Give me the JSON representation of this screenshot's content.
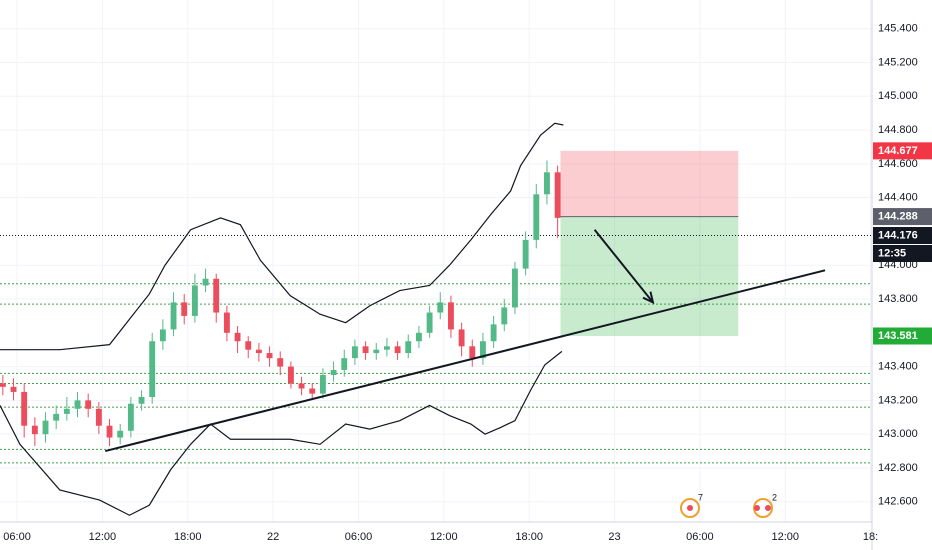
{
  "chart_data": {
    "type": "candlestick",
    "xlim": [
      4.8,
      66.1
    ],
    "ylim": [
      142.48,
      145.57
    ],
    "xticks": [
      {
        "value": 6,
        "label": "06:00"
      },
      {
        "value": 12,
        "label": "12:00"
      },
      {
        "value": 18,
        "label": "18:00"
      },
      {
        "value": 24,
        "label": "22"
      },
      {
        "value": 30,
        "label": "06:00"
      },
      {
        "value": 36,
        "label": "12:00"
      },
      {
        "value": 42,
        "label": "18:00"
      },
      {
        "value": 48,
        "label": "23"
      },
      {
        "value": 54,
        "label": "06:00"
      },
      {
        "value": 60,
        "label": "12:00"
      },
      {
        "value": 66,
        "label": "18:"
      }
    ],
    "yticks": [
      {
        "value": 145.4,
        "label": "145.400"
      },
      {
        "value": 145.2,
        "label": "145.200"
      },
      {
        "value": 145.0,
        "label": "145.000"
      },
      {
        "value": 144.8,
        "label": "144.800"
      },
      {
        "value": 144.6,
        "label": "144.600"
      },
      {
        "value": 144.4,
        "label": "144.400"
      },
      {
        "value": 144.0,
        "label": "144.000"
      },
      {
        "value": 143.8,
        "label": "143.800"
      },
      {
        "value": 143.4,
        "label": "143.400"
      },
      {
        "value": 143.2,
        "label": "143.200"
      },
      {
        "value": 143.0,
        "label": "143.000"
      },
      {
        "value": 142.8,
        "label": "142.800"
      },
      {
        "value": 142.6,
        "label": "142.600"
      }
    ],
    "grid": true,
    "up_color": "#53b987",
    "down_color": "#eb4d5c",
    "x": [
      5.0,
      5.75,
      6.5,
      7.25,
      8.0,
      8.75,
      9.5,
      10.25,
      11.0,
      11.75,
      12.5,
      13.25,
      14.0,
      14.75,
      15.5,
      16.25,
      17.0,
      17.75,
      18.5,
      19.25,
      20.0,
      20.75,
      21.5,
      22.25,
      23.0,
      23.75,
      24.5,
      25.25,
      26.0,
      26.75,
      27.5,
      28.25,
      29.0,
      29.75,
      30.5,
      31.25,
      32.0,
      32.75,
      33.5,
      34.25,
      35.0,
      35.75,
      36.5,
      37.25,
      38.0,
      38.75,
      39.5,
      40.25,
      41.0,
      41.75,
      42.5,
      43.25,
      44.0
    ],
    "open": [
      143.3,
      143.28,
      143.25,
      143.05,
      143.0,
      143.08,
      143.12,
      143.15,
      143.2,
      143.15,
      143.05,
      142.98,
      143.02,
      143.18,
      143.22,
      143.55,
      143.62,
      143.78,
      143.7,
      143.88,
      143.92,
      143.72,
      143.6,
      143.55,
      143.5,
      143.48,
      143.45,
      143.4,
      143.3,
      143.27,
      143.24,
      143.35,
      143.38,
      143.45,
      143.52,
      143.48,
      143.5,
      143.52,
      143.48,
      143.55,
      143.6,
      143.72,
      143.78,
      143.62,
      143.52,
      143.45,
      143.55,
      143.65,
      143.75,
      143.98,
      144.15,
      144.42,
      144.55
    ],
    "high": [
      143.35,
      143.33,
      143.3,
      143.1,
      143.13,
      143.17,
      143.22,
      143.25,
      143.24,
      143.19,
      143.09,
      143.06,
      143.22,
      143.26,
      143.6,
      143.68,
      143.84,
      143.83,
      143.95,
      143.98,
      143.95,
      143.76,
      143.64,
      143.58,
      143.54,
      143.52,
      143.49,
      143.43,
      143.34,
      143.3,
      143.39,
      143.43,
      143.5,
      143.56,
      143.55,
      143.54,
      143.57,
      143.55,
      143.59,
      143.64,
      143.76,
      143.84,
      143.82,
      143.66,
      143.56,
      143.6,
      143.7,
      143.8,
      144.02,
      144.2,
      144.48,
      144.62,
      144.59
    ],
    "low": [
      143.23,
      143.2,
      142.98,
      142.93,
      142.95,
      143.03,
      143.08,
      143.1,
      143.1,
      143.0,
      142.93,
      142.94,
      142.98,
      143.14,
      143.18,
      143.5,
      143.58,
      143.65,
      143.66,
      143.84,
      143.66,
      143.55,
      143.48,
      143.45,
      143.43,
      143.4,
      143.35,
      143.27,
      143.23,
      143.21,
      143.21,
      143.31,
      143.34,
      143.41,
      143.44,
      143.44,
      143.46,
      143.44,
      143.45,
      143.51,
      143.57,
      143.68,
      143.57,
      143.46,
      143.4,
      143.41,
      143.51,
      143.61,
      143.71,
      143.94,
      144.1,
      144.36,
      144.16
    ],
    "close": [
      143.28,
      143.25,
      143.05,
      143.0,
      143.08,
      143.12,
      143.15,
      143.2,
      143.15,
      143.05,
      142.98,
      143.02,
      143.18,
      143.22,
      143.55,
      143.62,
      143.78,
      143.7,
      143.88,
      143.92,
      143.72,
      143.6,
      143.55,
      143.5,
      143.48,
      143.45,
      143.4,
      143.3,
      143.27,
      143.24,
      143.35,
      143.38,
      143.45,
      143.52,
      143.48,
      143.5,
      143.52,
      143.48,
      143.55,
      143.6,
      143.72,
      143.78,
      143.62,
      143.52,
      143.45,
      143.55,
      143.65,
      143.75,
      143.98,
      144.15,
      144.42,
      144.55,
      144.28
    ],
    "upper_band": {
      "x": [
        4.8,
        9.0,
        12.5,
        13.9,
        15.3,
        16.4,
        18.2,
        20.3,
        21.7,
        23.1,
        25.2,
        27.3,
        29.1,
        30.8,
        32.9,
        35.0,
        36.4,
        37.9,
        39.3,
        40.7,
        41.4,
        42.8,
        43.8,
        44.4
      ],
      "values": [
        143.5,
        143.5,
        143.53,
        143.68,
        143.83,
        144.0,
        144.21,
        144.28,
        144.24,
        144.03,
        143.82,
        143.71,
        143.66,
        143.76,
        143.85,
        143.88,
        144.0,
        144.15,
        144.3,
        144.44,
        144.59,
        144.77,
        144.84,
        144.83
      ]
    },
    "lower_band": {
      "x": [
        4.8,
        6.2,
        9.0,
        11.8,
        13.9,
        15.3,
        16.8,
        18.2,
        19.6,
        21.0,
        23.1,
        25.2,
        27.3,
        29.1,
        30.8,
        32.9,
        35.0,
        36.4,
        37.9,
        38.9,
        40.0,
        41.0,
        42.1,
        43.1,
        44.3
      ],
      "values": [
        143.17,
        142.94,
        142.67,
        142.61,
        142.52,
        142.58,
        142.79,
        142.94,
        143.06,
        142.97,
        142.97,
        142.97,
        142.94,
        143.06,
        143.03,
        143.08,
        143.17,
        143.11,
        143.06,
        143.0,
        143.04,
        143.08,
        143.26,
        143.41,
        143.49
      ]
    },
    "levels": [
      143.89,
      143.77,
      143.36,
      143.3,
      143.16,
      142.91,
      142.83
    ],
    "level_color": "#43a047",
    "trend_line": {
      "x": [
        12.2,
        62.8
      ],
      "y": [
        142.9,
        143.97
      ]
    },
    "arrow": {
      "x": [
        46.6,
        50.7
      ],
      "y": [
        144.21,
        143.78
      ]
    },
    "position": {
      "x": [
        44.2,
        56.7
      ],
      "stop": 144.677,
      "entry": 144.288,
      "target": 143.581,
      "stop_color": "#f23645",
      "entry_color": "#5d606b",
      "target_color": "#22ab36"
    },
    "last_price": 144.176,
    "countdown": "12:35",
    "events": [
      {
        "label": "7"
      },
      {
        "label": "2"
      }
    ]
  }
}
